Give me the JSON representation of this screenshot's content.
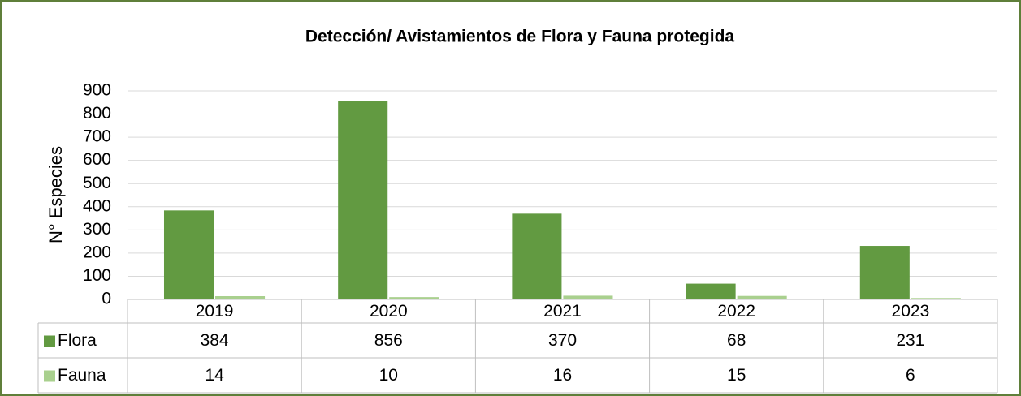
{
  "chart_data": {
    "type": "bar",
    "title": "Detección/ Avistamientos de Flora y Fauna protegida",
    "y_label": "N° Especies",
    "categories": [
      "2019",
      "2020",
      "2021",
      "2022",
      "2023"
    ],
    "series": [
      {
        "name": "Flora",
        "color": "#629a41",
        "values": [
          384,
          856,
          370,
          68,
          231
        ]
      },
      {
        "name": "Fauna",
        "color": "#a9d08e",
        "values": [
          14,
          10,
          16,
          15,
          6
        ]
      }
    ],
    "ylim": [
      0,
      900
    ],
    "yticks": [
      0,
      100,
      200,
      300,
      400,
      500,
      600,
      700,
      800,
      900
    ],
    "grid": true,
    "data_table": true
  }
}
